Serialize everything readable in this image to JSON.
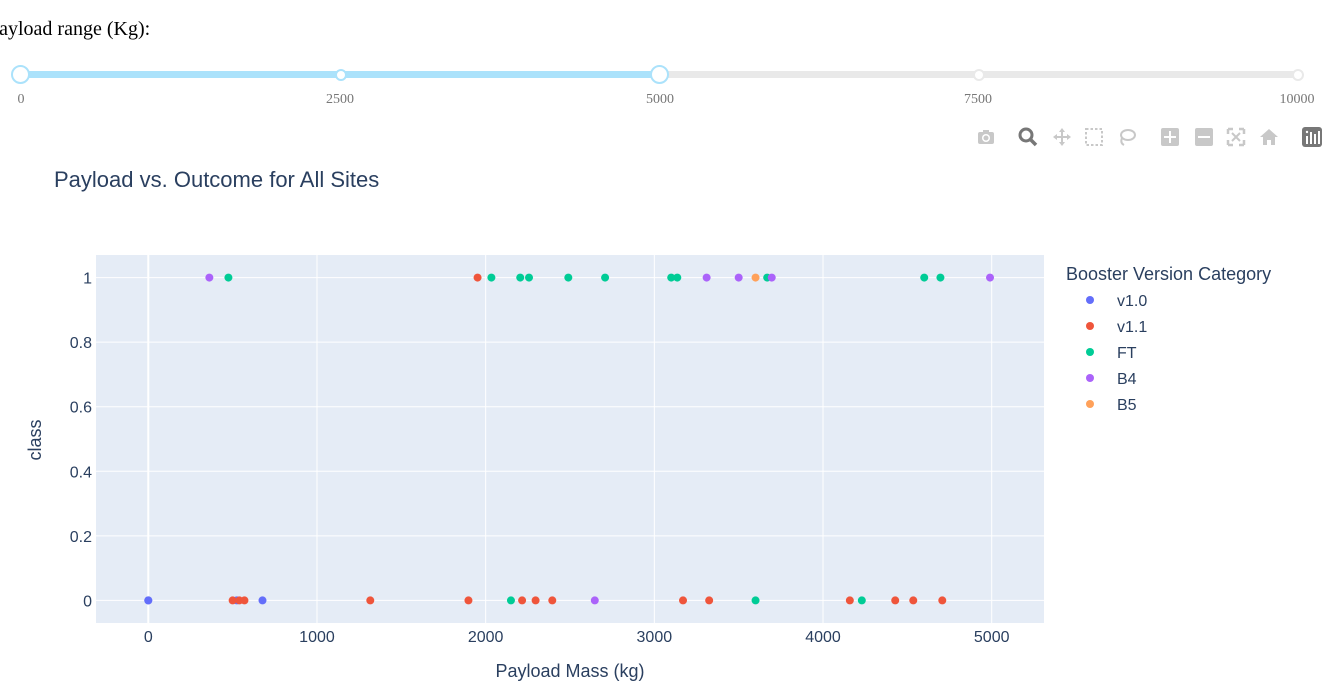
{
  "slider": {
    "label": "Payload range (Kg):",
    "marks": [
      "0",
      "2500",
      "5000",
      "7500",
      "10000"
    ],
    "range_min": 0,
    "range_max": 10000,
    "selected": [
      0,
      5000
    ]
  },
  "modebar": [
    "camera-icon",
    "zoom-icon",
    "pan-icon",
    "box-select-icon",
    "lasso-icon",
    "zoom-in-icon",
    "zoom-out-icon",
    "autoscale-icon",
    "reset-axes-icon",
    "plotly-logo-icon"
  ],
  "chart_data": {
    "type": "scatter",
    "title": "Payload vs. Outcome for All Sites",
    "xlabel": "Payload Mass (kg)",
    "ylabel": "class",
    "xlim": [
      -310,
      5310
    ],
    "ylim": [
      -0.07,
      1.07
    ],
    "xticks": [
      0,
      1000,
      2000,
      3000,
      4000,
      5000
    ],
    "yticks": [
      0,
      0.2,
      0.4,
      0.6,
      0.8,
      1
    ],
    "ytick_labels": [
      "0",
      "0.2",
      "0.4",
      "0.6",
      "0.8",
      "1"
    ],
    "grid": true,
    "legend_title": "Booster Version Category",
    "legend_position": "right",
    "series": [
      {
        "name": "v1.0",
        "color": "#636efa",
        "points": [
          [
            0,
            0
          ],
          [
            0,
            0
          ],
          [
            525,
            0
          ],
          [
            677,
            0
          ]
        ]
      },
      {
        "name": "v1.1",
        "color": "#EF553B",
        "points": [
          [
            500,
            0
          ],
          [
            540,
            0
          ],
          [
            570,
            0
          ],
          [
            1316,
            0
          ],
          [
            1898,
            0
          ],
          [
            1952,
            1
          ],
          [
            2216,
            0
          ],
          [
            2296,
            0
          ],
          [
            2395,
            0
          ],
          [
            3170,
            0
          ],
          [
            3325,
            0
          ],
          [
            4159,
            0
          ],
          [
            4428,
            0
          ],
          [
            4535,
            0
          ],
          [
            4707,
            0
          ]
        ]
      },
      {
        "name": "FT",
        "color": "#00cc96",
        "points": [
          [
            475,
            1
          ],
          [
            2034,
            1
          ],
          [
            2150,
            0
          ],
          [
            2205,
            1
          ],
          [
            2257,
            1
          ],
          [
            2490,
            1
          ],
          [
            2708,
            1
          ],
          [
            3100,
            1
          ],
          [
            3136,
            1
          ],
          [
            3600,
            0
          ],
          [
            3669,
            1
          ],
          [
            4230,
            0
          ],
          [
            4600,
            1
          ],
          [
            4696,
            1
          ]
        ]
      },
      {
        "name": "B4",
        "color": "#ab63fa",
        "points": [
          [
            362,
            1
          ],
          [
            2647,
            0
          ],
          [
            3310,
            1
          ],
          [
            3500,
            1
          ],
          [
            3696,
            1
          ],
          [
            4990,
            1
          ]
        ]
      },
      {
        "name": "B5",
        "color": "#FFA15A",
        "points": [
          [
            3600,
            1
          ]
        ]
      }
    ]
  }
}
